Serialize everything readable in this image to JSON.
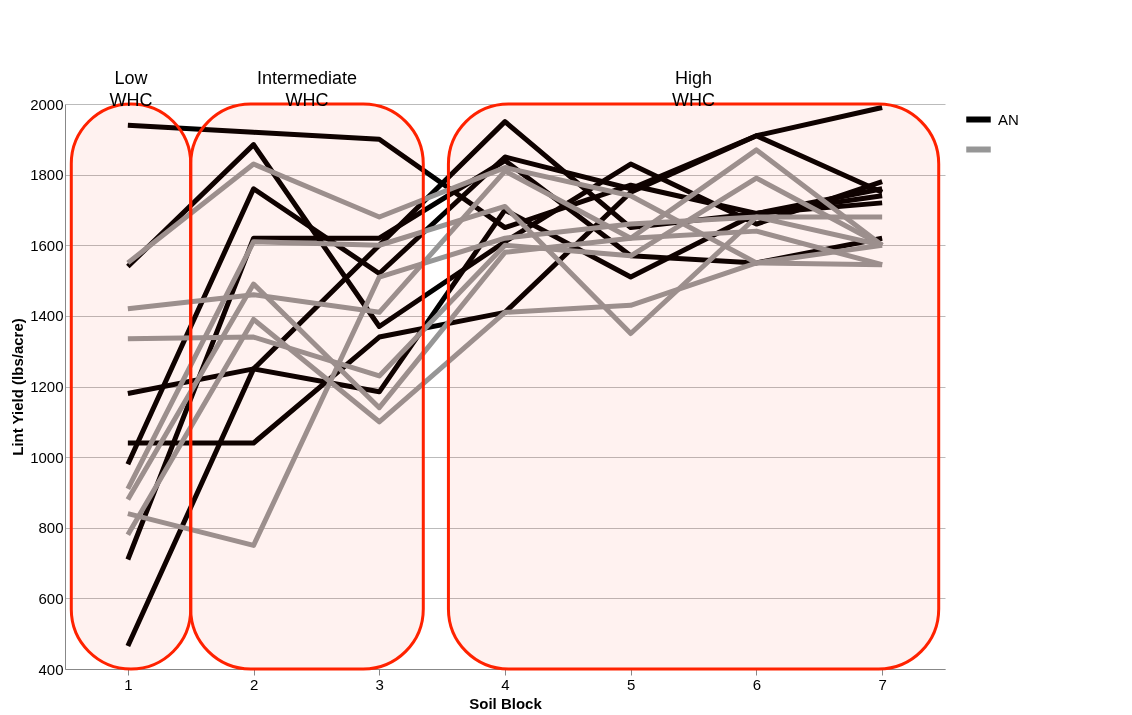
{
  "chart_data": {
    "type": "line",
    "xlabel": "Soil Block",
    "ylabel": "Lint Yield (lbs/acre)",
    "x": [
      1,
      2,
      3,
      4,
      5,
      6,
      7
    ],
    "xlim": [
      0.5,
      7.5
    ],
    "xticks": [
      1,
      2,
      3,
      4,
      5,
      6,
      7
    ],
    "ylim": [
      400,
      2000
    ],
    "yticks": [
      400,
      600,
      800,
      1000,
      1200,
      1400,
      1600,
      1800,
      2000
    ],
    "grid": "y",
    "legend": "right",
    "line_style": "solid",
    "marker": "none",
    "series": [
      {
        "name": "AN",
        "color": "#000000",
        "values": [
          1940,
          1920,
          1900,
          1650,
          1770,
          1690,
          1720
        ]
      },
      {
        "color": "#000000",
        "values": [
          1540,
          1885,
          1370,
          1610,
          1830,
          1660,
          1780
        ]
      },
      {
        "color": "#000000",
        "values": [
          980,
          1760,
          1520,
          1850,
          1760,
          1910,
          1750
        ]
      },
      {
        "color": "#000000",
        "values": [
          1180,
          1250,
          1185,
          1700,
          1510,
          1690,
          1760
        ]
      },
      {
        "color": "#000000",
        "values": [
          1040,
          1040,
          1340,
          1410,
          1750,
          1910,
          1990
        ]
      },
      {
        "color": "#000000",
        "values": [
          710,
          1620,
          1620,
          1840,
          1570,
          1550,
          1620
        ]
      },
      {
        "color": "#000000",
        "values": [
          465,
          1250,
          1600,
          1950,
          1650,
          1690,
          1740
        ]
      },
      {
        "color": "#969696",
        "values": [
          1550,
          1830,
          1680,
          1820,
          1740,
          1550,
          1600
        ]
      },
      {
        "color": "#969696",
        "values": [
          1420,
          1460,
          1410,
          1810,
          1620,
          1870,
          1600
        ]
      },
      {
        "color": "#969696",
        "values": [
          1335,
          1340,
          1230,
          1600,
          1570,
          1790,
          1600
        ]
      },
      {
        "color": "#969696",
        "values": [
          910,
          1610,
          1600,
          1710,
          1350,
          1680,
          1680
        ]
      },
      {
        "color": "#969696",
        "values": [
          880,
          1490,
          1140,
          1580,
          1620,
          1640,
          1545
        ]
      },
      {
        "color": "#969696",
        "values": [
          840,
          750,
          1510,
          1620,
          1660,
          1680,
          1600
        ]
      },
      {
        "color": "#969696",
        "values": [
          780,
          1390,
          1100,
          1410,
          1430,
          1550,
          1545
        ]
      }
    ],
    "bands": [
      {
        "axis": "x",
        "from": 0.55,
        "to": 1.5,
        "label": "Low\nWHC",
        "color": "#ff2200"
      },
      {
        "axis": "x",
        "from": 1.5,
        "to": 3.35,
        "label": "Intermediate\nWHC",
        "color": "#ff2200"
      },
      {
        "axis": "x",
        "from": 3.55,
        "to": 7.45,
        "label": "High\nWHC",
        "color": "#ff2200"
      }
    ]
  }
}
